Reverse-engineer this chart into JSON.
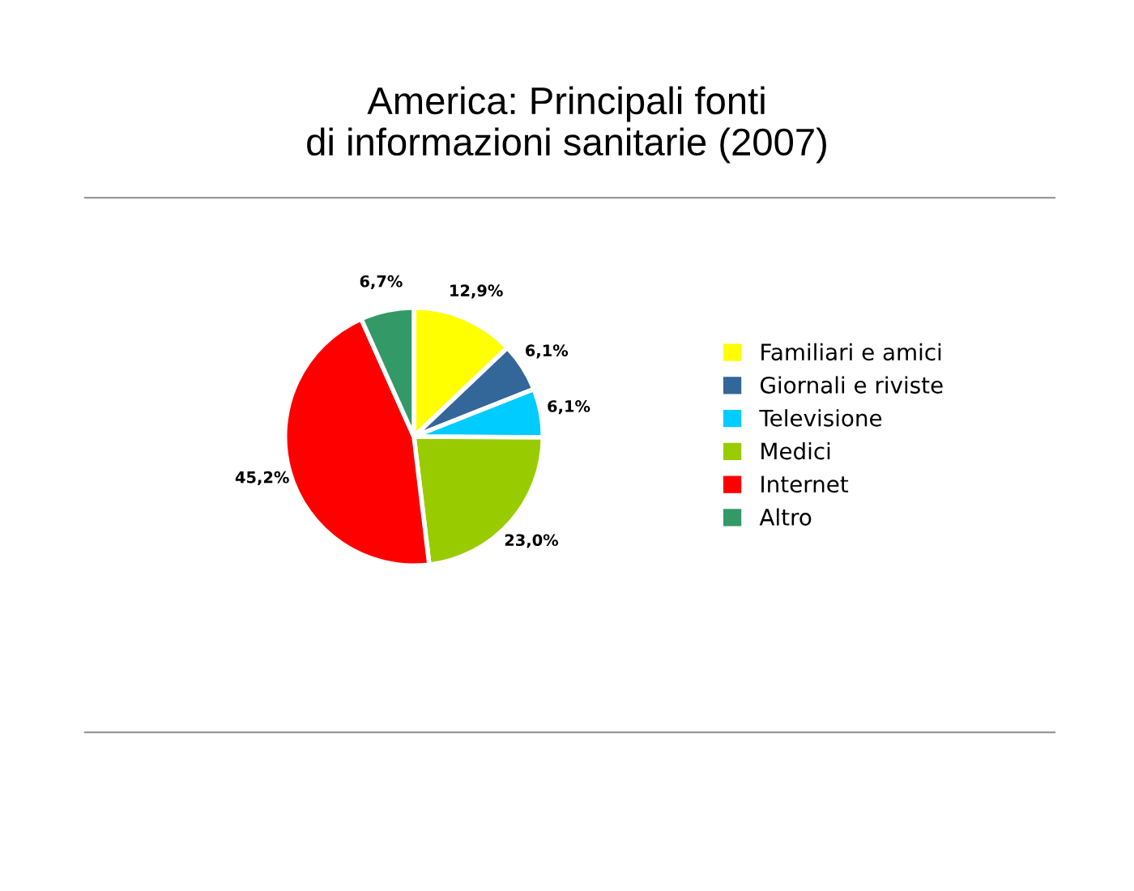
{
  "chart_data": {
    "type": "pie",
    "title": "America: Principali fonti\ndi informazioni sanitarie (2007)",
    "categories": [
      "Familiari e amici",
      "Giornali e riviste",
      "Televisione",
      "Medici",
      "Internet",
      "Altro"
    ],
    "values": [
      12.9,
      6.1,
      6.1,
      23.0,
      45.2,
      6.7
    ],
    "colors": [
      "#ffff00",
      "#336699",
      "#00ccff",
      "#99cc00",
      "#ff0000",
      "#339966"
    ],
    "value_labels": [
      "12,9%",
      "6,1%",
      "6,1%",
      "23,0%",
      "45,2%",
      "6,7%"
    ],
    "legend": "right"
  }
}
